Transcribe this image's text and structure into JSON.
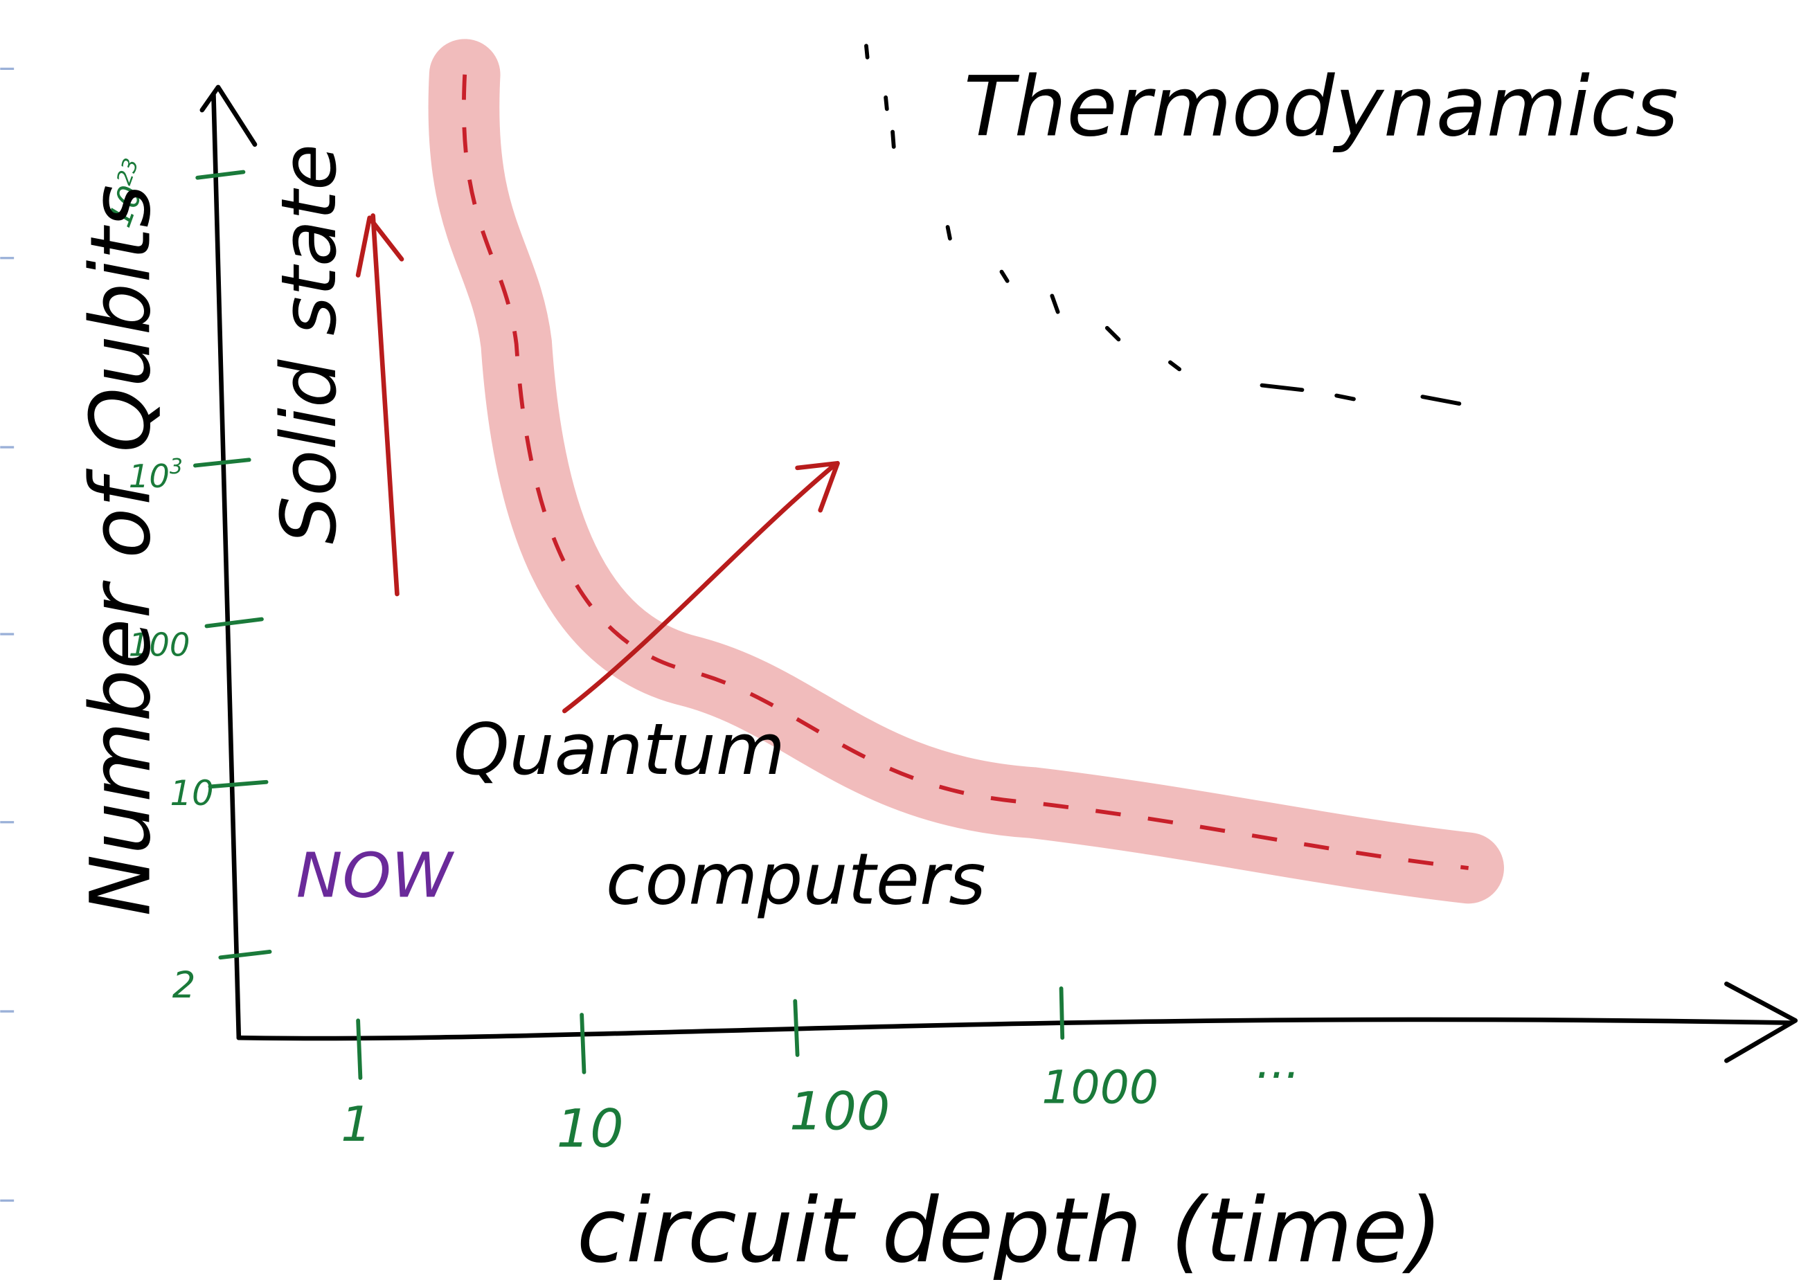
{
  "y_axis": {
    "label": "Number of Qubits",
    "ticks": [
      {
        "base": "10",
        "exponent": "23"
      },
      {
        "base": "10",
        "exponent": "3"
      },
      "100",
      "10",
      "2"
    ]
  },
  "x_axis": {
    "label": "circuit depth (time)",
    "ticks": [
      "1",
      "10",
      "100",
      "1000",
      "..."
    ]
  },
  "annotations": {
    "solid_state": "Solid state",
    "thermodynamics": "Thermodynamics",
    "quantum": "Quantum",
    "computers": "computers",
    "now": "NOW"
  }
}
